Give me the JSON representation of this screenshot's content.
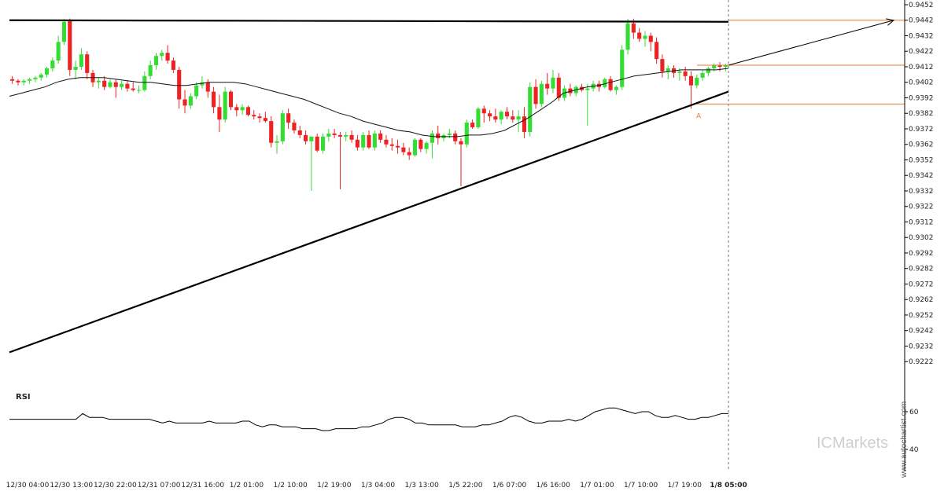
{
  "chart_data": {
    "type": "candlestick",
    "price_axis": {
      "ylim": [
        0.9214,
        0.9452
      ],
      "ticks": [
        "0.9452",
        "0.9442",
        "0.9432",
        "0.9422",
        "0.9412",
        "0.9402",
        "0.9392",
        "0.9382",
        "0.9372",
        "0.9362",
        "0.9352",
        "0.9342",
        "0.9332",
        "0.9322",
        "0.9312",
        "0.9302",
        "0.9292",
        "0.9282",
        "0.9272",
        "0.9262",
        "0.9252",
        "0.9242",
        "0.9232",
        "0.9222"
      ]
    },
    "x_ticks": [
      "12/30 04:00",
      "12/30 13:00",
      "12/30 22:00",
      "12/31 07:00",
      "12/31 16:00",
      "1/2 01:00",
      "1/2 10:00",
      "1/2 19:00",
      "1/3 04:00",
      "1/3 13:00",
      "1/5 22:00",
      "1/6 07:00",
      "1/6 16:00",
      "1/7 01:00",
      "1/7 10:00",
      "1/7 19:00",
      "1/8 05:00"
    ],
    "current_time_label": "1/8 05:00",
    "candles": [
      [
        0.9404,
        0.9406,
        0.9401,
        0.9403
      ],
      [
        0.9403,
        0.9404,
        0.94,
        0.9402
      ],
      [
        0.9402,
        0.9404,
        0.94,
        0.9403
      ],
      [
        0.9403,
        0.9405,
        0.9401,
        0.9404
      ],
      [
        0.9404,
        0.9406,
        0.9402,
        0.9405
      ],
      [
        0.9405,
        0.9408,
        0.9403,
        0.9407
      ],
      [
        0.9407,
        0.9412,
        0.9405,
        0.9411
      ],
      [
        0.9411,
        0.9418,
        0.9409,
        0.9416
      ],
      [
        0.9416,
        0.9432,
        0.9414,
        0.9428
      ],
      [
        0.9428,
        0.9443,
        0.9426,
        0.9441
      ],
      [
        0.9442,
        0.9443,
        0.9406,
        0.941
      ],
      [
        0.941,
        0.9416,
        0.9404,
        0.9412
      ],
      [
        0.9412,
        0.9424,
        0.941,
        0.942
      ],
      [
        0.942,
        0.9422,
        0.9404,
        0.9408
      ],
      [
        0.9408,
        0.941,
        0.9399,
        0.9402
      ],
      [
        0.9402,
        0.9405,
        0.9398,
        0.9403
      ],
      [
        0.9403,
        0.9406,
        0.9397,
        0.9399
      ],
      [
        0.9399,
        0.9404,
        0.9398,
        0.9402
      ],
      [
        0.9402,
        0.9404,
        0.9392,
        0.9399
      ],
      [
        0.9399,
        0.9403,
        0.9397,
        0.9401
      ],
      [
        0.9401,
        0.9403,
        0.9396,
        0.9398
      ],
      [
        0.9398,
        0.9402,
        0.9396,
        0.9397
      ],
      [
        0.9397,
        0.94,
        0.9395,
        0.9397
      ],
      [
        0.9397,
        0.9409,
        0.9396,
        0.9406
      ],
      [
        0.9406,
        0.9416,
        0.9404,
        0.9413
      ],
      [
        0.9413,
        0.9421,
        0.941,
        0.9419
      ],
      [
        0.9419,
        0.9423,
        0.9416,
        0.9421
      ],
      [
        0.9421,
        0.9426,
        0.9414,
        0.9416
      ],
      [
        0.9416,
        0.9418,
        0.9408,
        0.941
      ],
      [
        0.941,
        0.9412,
        0.9385,
        0.9391
      ],
      [
        0.9391,
        0.9397,
        0.9382,
        0.9387
      ],
      [
        0.9387,
        0.9395,
        0.9385,
        0.9393
      ],
      [
        0.9393,
        0.9402,
        0.9391,
        0.94
      ],
      [
        0.94,
        0.9406,
        0.9398,
        0.9402
      ],
      [
        0.9402,
        0.9404,
        0.9392,
        0.9396
      ],
      [
        0.9396,
        0.9399,
        0.9382,
        0.9386
      ],
      [
        0.9386,
        0.9394,
        0.937,
        0.9378
      ],
      [
        0.9378,
        0.9399,
        0.9376,
        0.9396
      ],
      [
        0.9396,
        0.9397,
        0.9384,
        0.9386
      ],
      [
        0.9386,
        0.9388,
        0.938,
        0.9384
      ],
      [
        0.9384,
        0.9388,
        0.9381,
        0.9386
      ],
      [
        0.9386,
        0.9387,
        0.938,
        0.9381
      ],
      [
        0.9381,
        0.9384,
        0.9378,
        0.938
      ],
      [
        0.938,
        0.9382,
        0.9376,
        0.9379
      ],
      [
        0.9379,
        0.9383,
        0.9376,
        0.9377
      ],
      [
        0.9377,
        0.938,
        0.936,
        0.9363
      ],
      [
        0.9363,
        0.9368,
        0.9356,
        0.9364
      ],
      [
        0.9364,
        0.9384,
        0.9362,
        0.9382
      ],
      [
        0.9382,
        0.9385,
        0.9372,
        0.9376
      ],
      [
        0.9376,
        0.9378,
        0.9369,
        0.9371
      ],
      [
        0.9371,
        0.9374,
        0.9366,
        0.9368
      ],
      [
        0.9368,
        0.9371,
        0.9362,
        0.9364
      ],
      [
        0.9364,
        0.9367,
        0.9332,
        0.9367
      ],
      [
        0.9367,
        0.9369,
        0.9357,
        0.9358
      ],
      [
        0.9358,
        0.9369,
        0.9356,
        0.9367
      ],
      [
        0.9367,
        0.9372,
        0.9364,
        0.9369
      ],
      [
        0.9369,
        0.9372,
        0.9366,
        0.9368
      ],
      [
        0.9368,
        0.937,
        0.9333,
        0.9367
      ],
      [
        0.9367,
        0.937,
        0.9364,
        0.9368
      ],
      [
        0.9368,
        0.9371,
        0.9363,
        0.9365
      ],
      [
        0.9365,
        0.9368,
        0.9358,
        0.936
      ],
      [
        0.936,
        0.937,
        0.9358,
        0.9368
      ],
      [
        0.9368,
        0.9371,
        0.9359,
        0.936
      ],
      [
        0.936,
        0.9371,
        0.9358,
        0.9369
      ],
      [
        0.9369,
        0.9371,
        0.9363,
        0.9365
      ],
      [
        0.9365,
        0.9368,
        0.936,
        0.9362
      ],
      [
        0.9362,
        0.9366,
        0.9358,
        0.9361
      ],
      [
        0.9361,
        0.9365,
        0.9356,
        0.936
      ],
      [
        0.936,
        0.9363,
        0.9355,
        0.9357
      ],
      [
        0.9357,
        0.936,
        0.9352,
        0.9355
      ],
      [
        0.9355,
        0.9366,
        0.9354,
        0.9365
      ],
      [
        0.9365,
        0.9366,
        0.9357,
        0.9359
      ],
      [
        0.9359,
        0.9364,
        0.9356,
        0.9363
      ],
      [
        0.9363,
        0.9371,
        0.9353,
        0.9369
      ],
      [
        0.9369,
        0.9374,
        0.9362,
        0.9366
      ],
      [
        0.9366,
        0.9369,
        0.9364,
        0.9368
      ],
      [
        0.9368,
        0.9372,
        0.9366,
        0.9369
      ],
      [
        0.9369,
        0.9371,
        0.9362,
        0.9364
      ],
      [
        0.9364,
        0.9366,
        0.9335,
        0.9362
      ],
      [
        0.9362,
        0.9378,
        0.936,
        0.9376
      ],
      [
        0.9376,
        0.9378,
        0.9372,
        0.9373
      ],
      [
        0.9373,
        0.9386,
        0.9372,
        0.9385
      ],
      [
        0.9385,
        0.9387,
        0.9376,
        0.9382
      ],
      [
        0.9382,
        0.9384,
        0.9377,
        0.938
      ],
      [
        0.938,
        0.9385,
        0.9376,
        0.9378
      ],
      [
        0.9378,
        0.9384,
        0.9375,
        0.9383
      ],
      [
        0.9383,
        0.9386,
        0.9378,
        0.938
      ],
      [
        0.938,
        0.9384,
        0.9376,
        0.9378
      ],
      [
        0.9378,
        0.9384,
        0.937,
        0.938
      ],
      [
        0.938,
        0.9386,
        0.9366,
        0.937
      ],
      [
        0.937,
        0.9402,
        0.9367,
        0.9399
      ],
      [
        0.9399,
        0.9404,
        0.9385,
        0.9388
      ],
      [
        0.9388,
        0.9403,
        0.9386,
        0.9401
      ],
      [
        0.9401,
        0.9408,
        0.9394,
        0.9398
      ],
      [
        0.9398,
        0.941,
        0.9395,
        0.9405
      ],
      [
        0.9405,
        0.9408,
        0.939,
        0.9392
      ],
      [
        0.9392,
        0.94,
        0.939,
        0.9398
      ],
      [
        0.9398,
        0.9401,
        0.9393,
        0.9395
      ],
      [
        0.9395,
        0.94,
        0.9393,
        0.9399
      ],
      [
        0.9399,
        0.9401,
        0.9396,
        0.9397
      ],
      [
        0.9397,
        0.9401,
        0.9374,
        0.9398
      ],
      [
        0.9398,
        0.9403,
        0.9396,
        0.9401
      ],
      [
        0.9401,
        0.9403,
        0.9396,
        0.9399
      ],
      [
        0.9399,
        0.9405,
        0.9398,
        0.9404
      ],
      [
        0.9404,
        0.9406,
        0.9396,
        0.9397
      ],
      [
        0.9397,
        0.94,
        0.9394,
        0.9399
      ],
      [
        0.9399,
        0.9426,
        0.9397,
        0.9423
      ],
      [
        0.9423,
        0.9443,
        0.942,
        0.944
      ],
      [
        0.944,
        0.9443,
        0.943,
        0.9434
      ],
      [
        0.9434,
        0.9437,
        0.9428,
        0.943
      ],
      [
        0.943,
        0.9435,
        0.9425,
        0.9432
      ],
      [
        0.9432,
        0.9434,
        0.9422,
        0.9428
      ],
      [
        0.9428,
        0.9431,
        0.9414,
        0.9417
      ],
      [
        0.9417,
        0.942,
        0.9405,
        0.9409
      ],
      [
        0.9409,
        0.9413,
        0.9404,
        0.9411
      ],
      [
        0.9411,
        0.9413,
        0.9405,
        0.9408
      ],
      [
        0.9408,
        0.9411,
        0.9403,
        0.9409
      ],
      [
        0.9409,
        0.9412,
        0.9403,
        0.9406
      ],
      [
        0.9406,
        0.9409,
        0.9385,
        0.94
      ],
      [
        0.94,
        0.9407,
        0.9398,
        0.9405
      ],
      [
        0.9405,
        0.941,
        0.9403,
        0.9408
      ],
      [
        0.9408,
        0.9412,
        0.9406,
        0.9411
      ],
      [
        0.9411,
        0.9414,
        0.9409,
        0.9413
      ],
      [
        0.9413,
        0.9415,
        0.9409,
        0.9412
      ],
      [
        0.9412,
        0.9414,
        0.9409,
        0.9413
      ]
    ],
    "moving_average": [
      0.9393,
      0.9395,
      0.9397,
      0.9399,
      0.9402,
      0.9404,
      0.9405,
      0.9405,
      0.9405,
      0.9404,
      0.9403,
      0.9402,
      0.9402,
      0.9401,
      0.94,
      0.94,
      0.9401,
      0.9402,
      0.9402,
      0.9402,
      0.9401,
      0.9399,
      0.9397,
      0.9395,
      0.9393,
      0.9391,
      0.9388,
      0.9385,
      0.9382,
      0.938,
      0.9377,
      0.9375,
      0.9373,
      0.9371,
      0.937,
      0.9368,
      0.9367,
      0.9367,
      0.9367,
      0.9368,
      0.9368,
      0.9369,
      0.9371,
      0.9375,
      0.9379,
      0.9384,
      0.9389,
      0.9395,
      0.9397,
      0.9399,
      0.94,
      0.9402,
      0.9404,
      0.9406,
      0.9407,
      0.9408,
      0.9409,
      0.941,
      0.941,
      0.941,
      0.941,
      0.9411
    ],
    "trendlines": [
      {
        "from": [
          0.0,
          0.9442
        ],
        "to": [
          1.0,
          0.9441
        ],
        "role": "resistance"
      },
      {
        "from": [
          0.0,
          0.9228
        ],
        "to": [
          1.0,
          0.9396
        ],
        "role": "support"
      }
    ],
    "projection": {
      "from_price": 0.9413,
      "to_price": 0.9442
    },
    "horizontal_levels": [
      0.9442,
      0.9413,
      0.9388
    ],
    "pattern_marker": {
      "label": "A",
      "price": 0.9385
    },
    "rsi": {
      "label": "RSI",
      "ticks": [
        "60",
        "40"
      ],
      "ylim": [
        30,
        70
      ],
      "values": [
        56,
        56,
        56,
        56,
        56,
        56,
        56,
        56,
        56,
        56,
        56,
        59,
        57,
        57,
        57,
        56,
        56,
        56,
        56,
        56,
        56,
        56,
        55,
        54,
        55,
        54,
        54,
        54,
        54,
        54,
        55,
        54,
        54,
        54,
        54,
        55,
        55,
        53,
        52,
        53,
        53,
        52,
        52,
        52,
        51,
        51,
        51,
        50,
        50,
        51,
        51,
        51,
        51,
        52,
        52,
        53,
        54,
        56,
        57,
        57,
        56,
        54,
        54,
        53,
        53,
        53,
        53,
        53,
        52,
        52,
        52,
        53,
        53,
        54,
        55,
        57,
        58,
        57,
        55,
        54,
        54,
        55,
        55,
        55,
        56,
        55,
        56,
        58,
        60,
        61,
        62,
        62,
        61,
        60,
        59,
        60,
        60,
        58,
        57,
        57,
        58,
        57,
        56,
        56,
        57,
        57,
        58,
        59,
        59
      ]
    },
    "watermark": "www.autochartist.com",
    "brand": "ICMarkets"
  }
}
